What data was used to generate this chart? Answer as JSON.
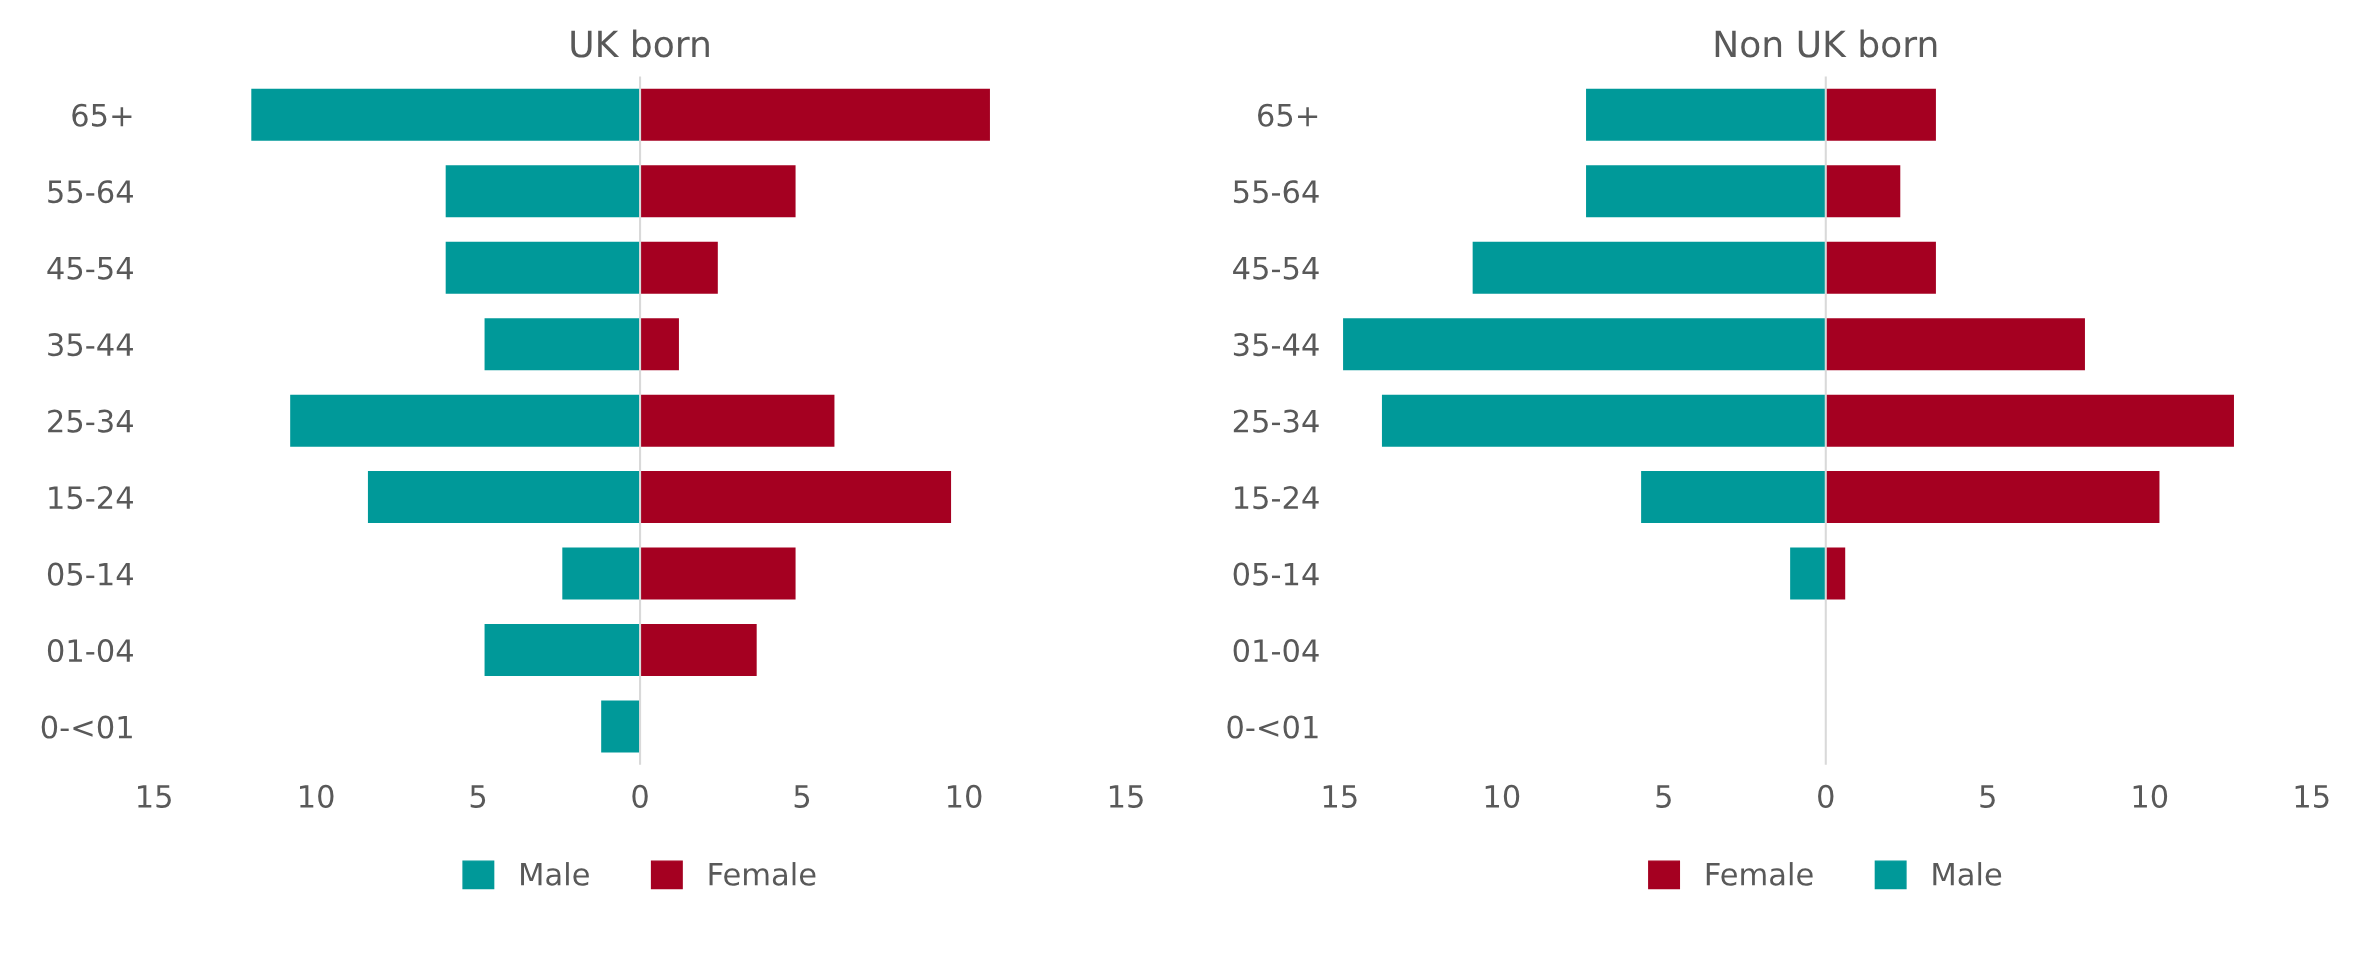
{
  "chart_data": [
    {
      "type": "bar",
      "orientation": "horizontal",
      "title": "UK born",
      "categories": [
        "65+",
        "55-64",
        "45-54",
        "35-44",
        "25-34",
        "15-24",
        "05-14",
        "01-04",
        "0-<01"
      ],
      "series": [
        {
          "name": "Male",
          "color": "#009999",
          "values": [
            -12.0,
            -6.0,
            -6.0,
            -4.8,
            -10.8,
            -8.4,
            -2.4,
            -4.8,
            -1.2
          ]
        },
        {
          "name": "Female",
          "color": "#a50021",
          "values": [
            10.8,
            4.8,
            2.4,
            1.2,
            6.0,
            9.6,
            4.8,
            3.6,
            0
          ]
        }
      ],
      "xlim": [
        -15,
        15
      ],
      "xticks": [
        {
          "value": -15,
          "label": "15"
        },
        {
          "value": -10,
          "label": "10"
        },
        {
          "value": -5,
          "label": "5"
        },
        0,
        5,
        10,
        15
      ],
      "ref_lines": [
        {
          "axis": "x",
          "value": 0,
          "color": "#d9d9d9"
        }
      ],
      "stacked": true,
      "grid": false,
      "legend": "bottom"
    },
    {
      "type": "bar",
      "orientation": "horizontal",
      "title": "Non UK born",
      "categories": [
        "65+",
        "55-64",
        "45-54",
        "35-44",
        "25-34",
        "15-24",
        "05-14",
        "01-04",
        "0-<01"
      ],
      "series": [
        {
          "name": "Female",
          "color": "#a50021",
          "values": [
            3.4,
            2.3,
            3.4,
            8.0,
            12.6,
            10.3,
            0.6,
            0,
            0
          ]
        },
        {
          "name": "Male",
          "color": "#009999",
          "values": [
            -7.4,
            -7.4,
            -10.9,
            -14.9,
            -13.7,
            -5.7,
            -1.1,
            0,
            0
          ]
        }
      ],
      "xlim": [
        -15,
        15
      ],
      "xticks": [
        {
          "value": -15,
          "label": "15"
        },
        {
          "value": -10,
          "label": "10"
        },
        {
          "value": -5,
          "label": "5"
        },
        0,
        5,
        10,
        15
      ],
      "ref_lines": [
        {
          "axis": "x",
          "value": 0,
          "color": "#d9d9d9"
        }
      ],
      "stacked": true,
      "grid": false,
      "legend": "bottom"
    }
  ]
}
